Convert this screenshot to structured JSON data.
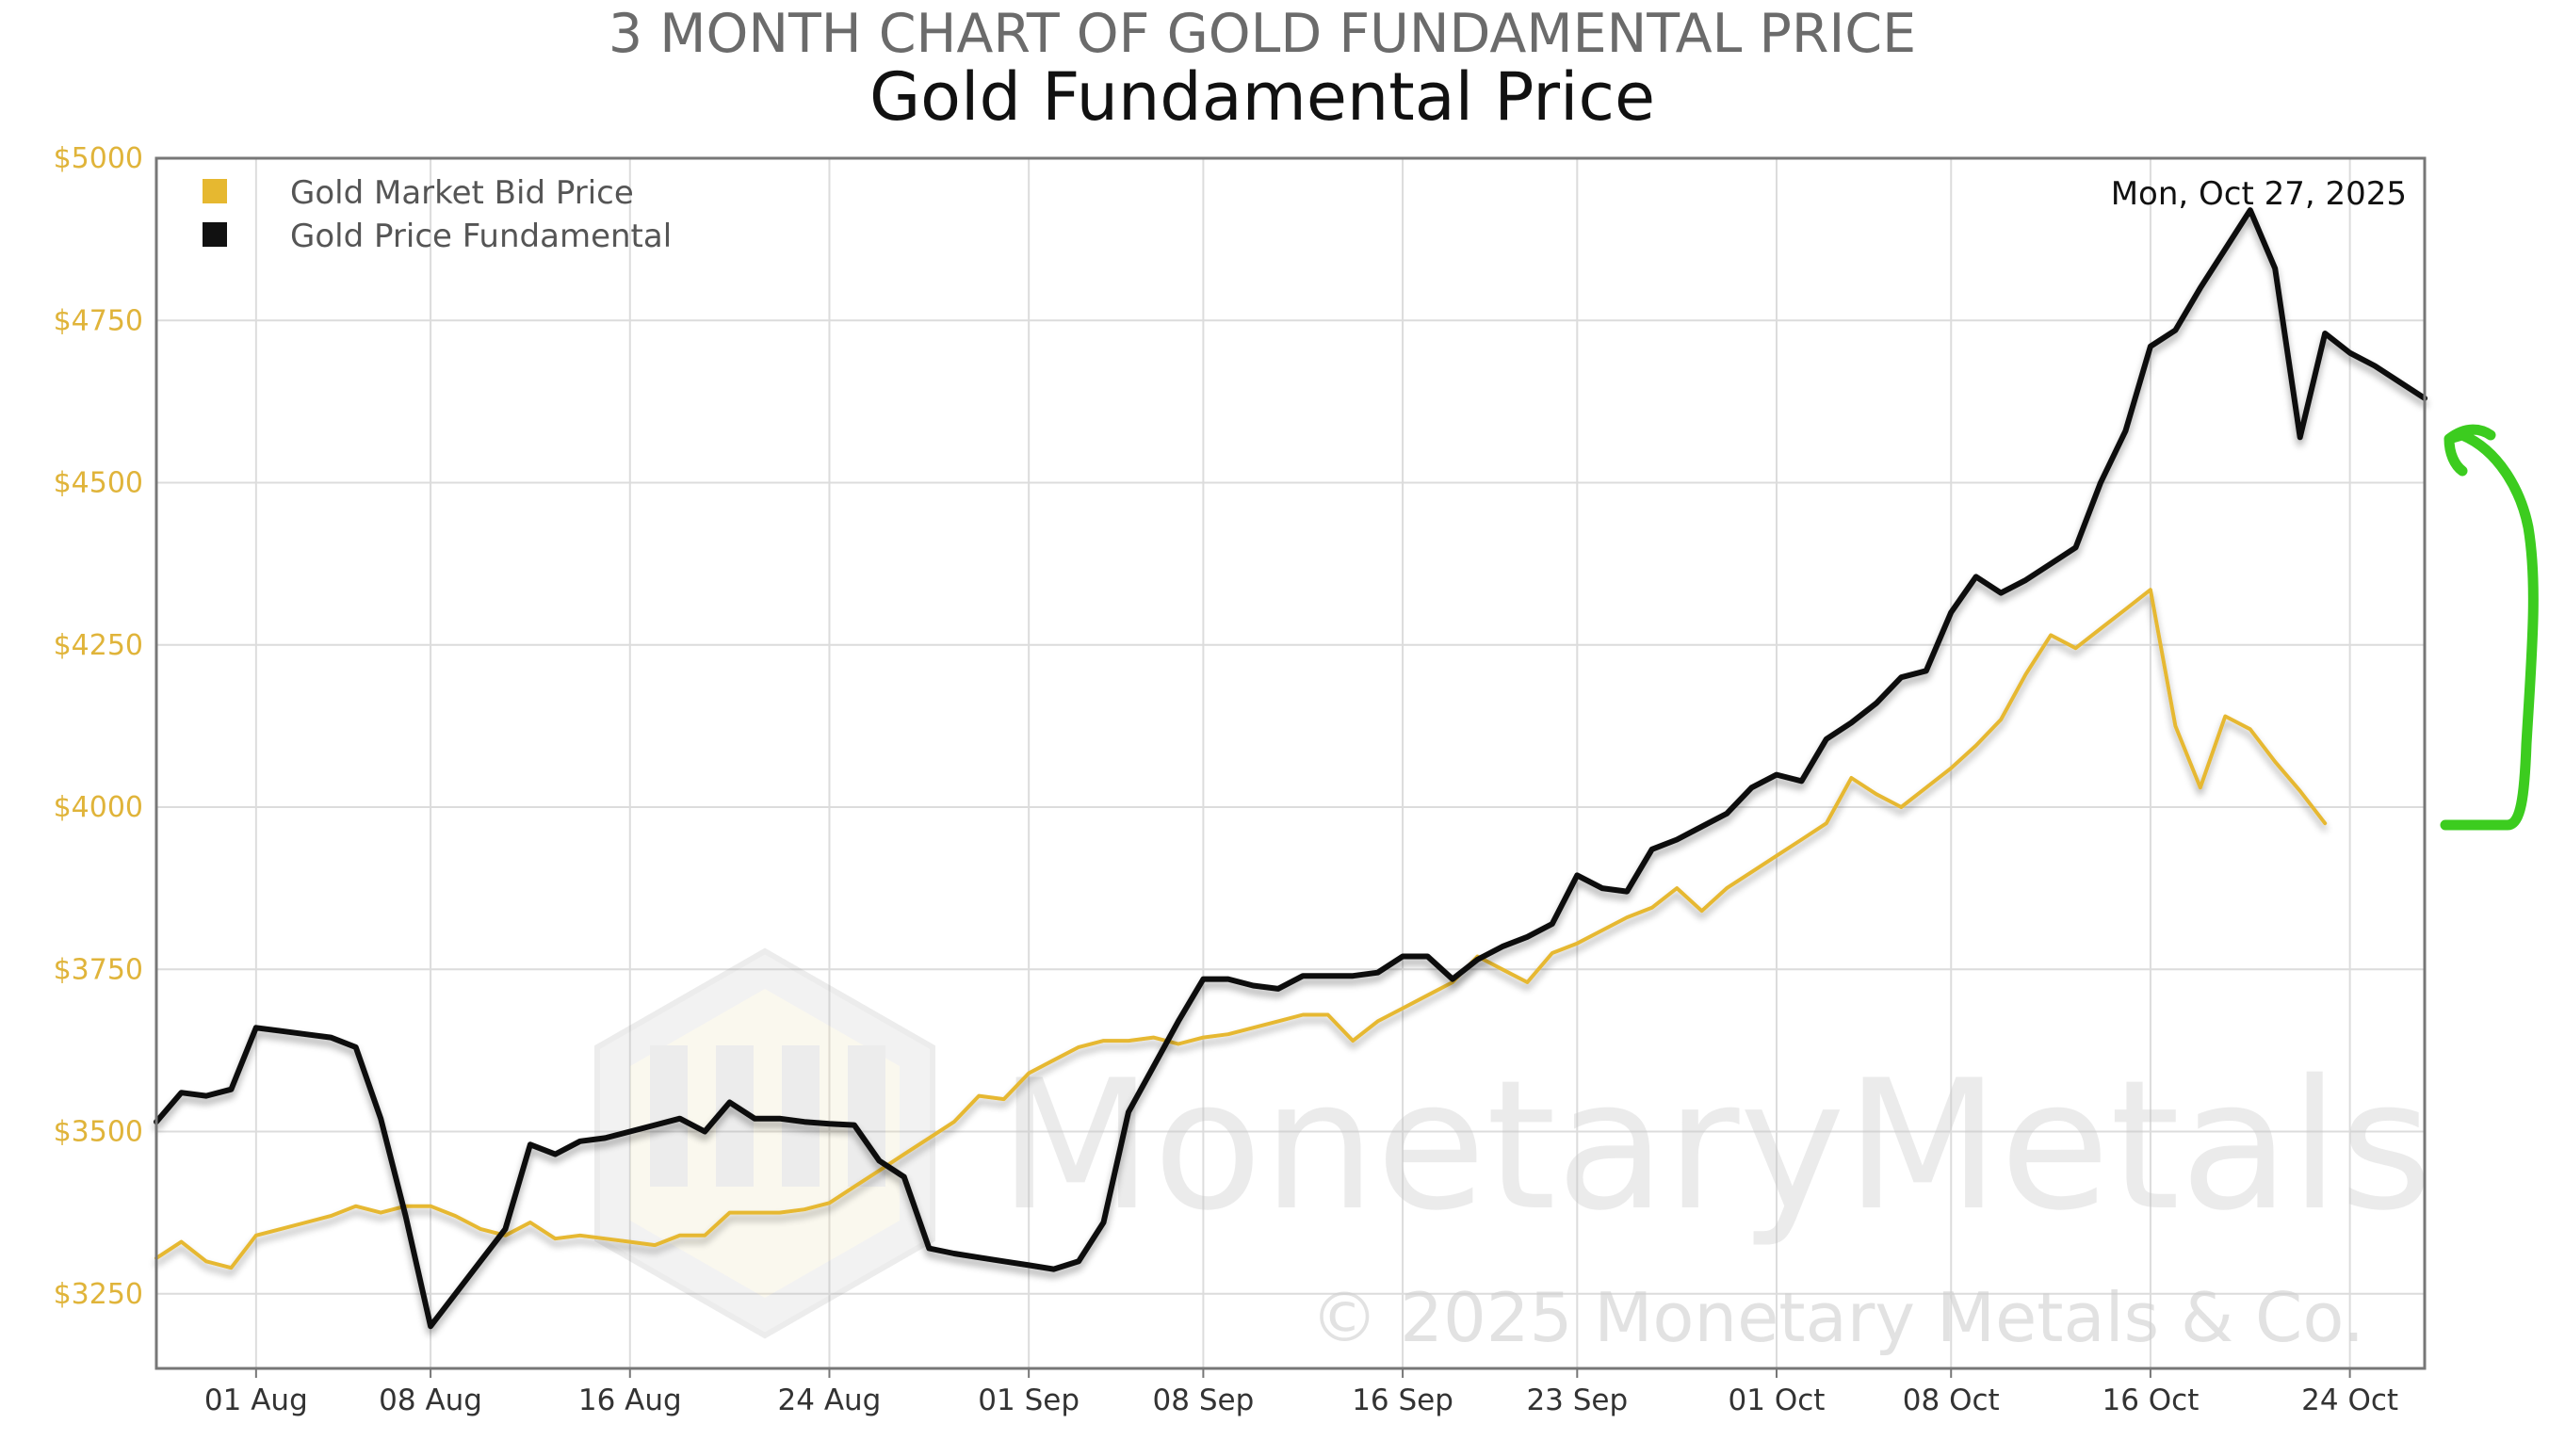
{
  "chart_data": {
    "type": "line",
    "supertitle": "3 MONTH CHART OF GOLD FUNDAMENTAL PRICE",
    "title": "Gold Fundamental Price",
    "date_stamp": "Mon, Oct 27, 2025",
    "watermark": "MonetaryMetals",
    "copyright": "© 2025 Monetary Metals & Co.",
    "ylim": [
      3135,
      5000
    ],
    "yticks": [
      {
        "value": 5000,
        "label": "$5000"
      },
      {
        "value": 4750,
        "label": "$4750"
      },
      {
        "value": 4500,
        "label": "$4500"
      },
      {
        "value": 4250,
        "label": "$4250"
      },
      {
        "value": 4000,
        "label": "$4000"
      },
      {
        "value": 3750,
        "label": "$3750"
      },
      {
        "value": 3500,
        "label": "$3500"
      },
      {
        "value": 3250,
        "label": "$3250"
      }
    ],
    "xlim": [
      0,
      91
    ],
    "xticks": [
      {
        "day": 4,
        "label": "01 Aug"
      },
      {
        "day": 11,
        "label": "08 Aug"
      },
      {
        "day": 19,
        "label": "16 Aug"
      },
      {
        "day": 27,
        "label": "24 Aug"
      },
      {
        "day": 35,
        "label": "01 Sep"
      },
      {
        "day": 42,
        "label": "08 Sep"
      },
      {
        "day": 50,
        "label": "16 Sep"
      },
      {
        "day": 57,
        "label": "23 Sep"
      },
      {
        "day": 65,
        "label": "01 Oct"
      },
      {
        "day": 72,
        "label": "08 Oct"
      },
      {
        "day": 80,
        "label": "16 Oct"
      },
      {
        "day": 88,
        "label": "24 Oct"
      }
    ],
    "legend_position": "top-left",
    "series": [
      {
        "name": "Gold Market Bid Price",
        "color": "#e6b830",
        "points": [
          [
            0,
            3305
          ],
          [
            1,
            3330
          ],
          [
            2,
            3300
          ],
          [
            3,
            3290
          ],
          [
            4,
            3340
          ],
          [
            5,
            3350
          ],
          [
            6,
            3360
          ],
          [
            7,
            3370
          ],
          [
            8,
            3385
          ],
          [
            9,
            3375
          ],
          [
            10,
            3385
          ],
          [
            11,
            3385
          ],
          [
            12,
            3370
          ],
          [
            13,
            3350
          ],
          [
            14,
            3340
          ],
          [
            15,
            3360
          ],
          [
            16,
            3335
          ],
          [
            17,
            3340
          ],
          [
            18,
            3335
          ],
          [
            19,
            3330
          ],
          [
            20,
            3325
          ],
          [
            21,
            3340
          ],
          [
            22,
            3340
          ],
          [
            23,
            3375
          ],
          [
            24,
            3375
          ],
          [
            25,
            3375
          ],
          [
            26,
            3380
          ],
          [
            27,
            3390
          ],
          [
            28,
            3415
          ],
          [
            29,
            3440
          ],
          [
            30,
            3465
          ],
          [
            31,
            3490
          ],
          [
            32,
            3515
          ],
          [
            33,
            3555
          ],
          [
            34,
            3550
          ],
          [
            35,
            3590
          ],
          [
            36,
            3610
          ],
          [
            37,
            3630
          ],
          [
            38,
            3640
          ],
          [
            39,
            3640
          ],
          [
            40,
            3645
          ],
          [
            41,
            3635
          ],
          [
            42,
            3645
          ],
          [
            43,
            3650
          ],
          [
            44,
            3660
          ],
          [
            45,
            3670
          ],
          [
            46,
            3680
          ],
          [
            47,
            3680
          ],
          [
            48,
            3640
          ],
          [
            49,
            3670
          ],
          [
            50,
            3690
          ],
          [
            51,
            3710
          ],
          [
            52,
            3730
          ],
          [
            53,
            3770
          ],
          [
            54,
            3750
          ],
          [
            55,
            3730
          ],
          [
            56,
            3775
          ],
          [
            57,
            3790
          ],
          [
            58,
            3810
          ],
          [
            59,
            3830
          ],
          [
            60,
            3845
          ],
          [
            61,
            3875
          ],
          [
            62,
            3840
          ],
          [
            63,
            3875
          ],
          [
            64,
            3900
          ],
          [
            65,
            3925
          ],
          [
            66,
            3950
          ],
          [
            67,
            3975
          ],
          [
            68,
            4045
          ],
          [
            69,
            4020
          ],
          [
            70,
            4000
          ],
          [
            71,
            4030
          ],
          [
            72,
            4060
          ],
          [
            73,
            4095
          ],
          [
            74,
            4135
          ],
          [
            75,
            4205
          ],
          [
            76,
            4265
          ],
          [
            77,
            4245
          ],
          [
            78,
            4275
          ],
          [
            79,
            4305
          ],
          [
            80,
            4335
          ],
          [
            81,
            4125
          ],
          [
            82,
            4030
          ],
          [
            83,
            4140
          ],
          [
            84,
            4120
          ],
          [
            85,
            4070
          ],
          [
            86,
            4025
          ],
          [
            87,
            3975
          ]
        ]
      },
      {
        "name": "Gold Price Fundamental",
        "color": "#111111",
        "points": [
          [
            0,
            3515
          ],
          [
            1,
            3560
          ],
          [
            2,
            3555
          ],
          [
            3,
            3565
          ],
          [
            4,
            3660
          ],
          [
            5,
            3655
          ],
          [
            6,
            3650
          ],
          [
            7,
            3645
          ],
          [
            8,
            3630
          ],
          [
            9,
            3520
          ],
          [
            10,
            3370
          ],
          [
            11,
            3200
          ],
          [
            12,
            3250
          ],
          [
            13,
            3300
          ],
          [
            14,
            3350
          ],
          [
            15,
            3480
          ],
          [
            16,
            3465
          ],
          [
            17,
            3485
          ],
          [
            18,
            3490
          ],
          [
            19,
            3500
          ],
          [
            20,
            3510
          ],
          [
            21,
            3520
          ],
          [
            22,
            3500
          ],
          [
            23,
            3545
          ],
          [
            24,
            3520
          ],
          [
            25,
            3520
          ],
          [
            26,
            3515
          ],
          [
            27,
            3512
          ],
          [
            28,
            3510
          ],
          [
            29,
            3455
          ],
          [
            30,
            3430
          ],
          [
            31,
            3320
          ],
          [
            32,
            3312
          ],
          [
            33,
            3306
          ],
          [
            34,
            3300
          ],
          [
            35,
            3294
          ],
          [
            36,
            3288
          ],
          [
            37,
            3300
          ],
          [
            38,
            3360
          ],
          [
            39,
            3530
          ],
          [
            40,
            3600
          ],
          [
            41,
            3670
          ],
          [
            42,
            3735
          ],
          [
            43,
            3735
          ],
          [
            44,
            3725
          ],
          [
            45,
            3720
          ],
          [
            46,
            3740
          ],
          [
            47,
            3740
          ],
          [
            48,
            3740
          ],
          [
            49,
            3745
          ],
          [
            50,
            3770
          ],
          [
            51,
            3770
          ],
          [
            52,
            3735
          ],
          [
            53,
            3765
          ],
          [
            54,
            3785
          ],
          [
            55,
            3800
          ],
          [
            56,
            3820
          ],
          [
            57,
            3895
          ],
          [
            58,
            3875
          ],
          [
            59,
            3870
          ],
          [
            60,
            3935
          ],
          [
            61,
            3950
          ],
          [
            62,
            3970
          ],
          [
            63,
            3990
          ],
          [
            64,
            4030
          ],
          [
            65,
            4050
          ],
          [
            66,
            4040
          ],
          [
            67,
            4105
          ],
          [
            68,
            4130
          ],
          [
            69,
            4160
          ],
          [
            70,
            4200
          ],
          [
            71,
            4210
          ],
          [
            72,
            4300
          ],
          [
            73,
            4355
          ],
          [
            74,
            4330
          ],
          [
            75,
            4350
          ],
          [
            76,
            4375
          ],
          [
            77,
            4400
          ],
          [
            78,
            4500
          ],
          [
            79,
            4580
          ],
          [
            80,
            4710
          ],
          [
            81,
            4735
          ],
          [
            82,
            4800
          ],
          [
            83,
            4860
          ],
          [
            84,
            4920
          ],
          [
            85,
            4830
          ],
          [
            86,
            4570
          ],
          [
            87,
            4730
          ],
          [
            88,
            4700
          ],
          [
            89,
            4680
          ],
          [
            90,
            4655
          ],
          [
            91,
            4630
          ]
        ]
      }
    ],
    "annotation": {
      "type": "hand-drawn arrow",
      "color": "#3ccc1f"
    }
  }
}
